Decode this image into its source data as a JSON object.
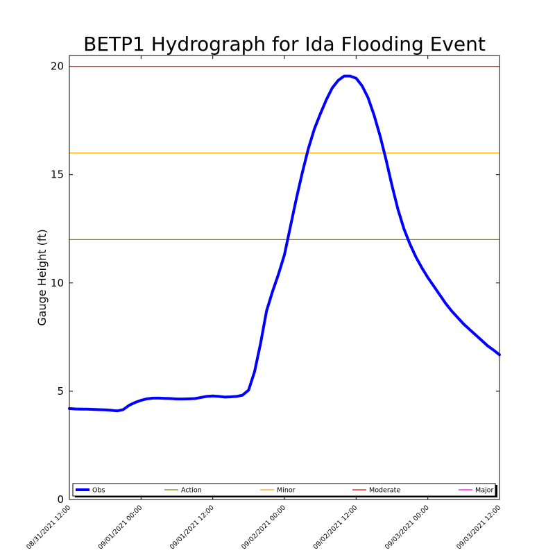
{
  "chart_data": {
    "type": "line",
    "title": "BETP1 Hydrograph for Ida Flooding Event",
    "xlabel": "",
    "ylabel": "Gauge Height (ft)",
    "ylim": [
      0,
      20.5
    ],
    "xlim": [
      "08/31/2021 12:00",
      "09/03/2021 12:00"
    ],
    "yticks": [
      0,
      5,
      10,
      15,
      20
    ],
    "xticks": [
      "08/31/2021 12:00",
      "09/01/2021 00:00",
      "09/01/2021 12:00",
      "09/02/2021 00:00",
      "09/02/2021 12:00",
      "09/03/2021 00:00",
      "09/03/2021 12:00"
    ],
    "legend": {
      "placement": "bottom",
      "entries": [
        "Obs",
        "Action",
        "Minor",
        "Moderate",
        "Major"
      ]
    },
    "grid": false,
    "series": [
      {
        "name": "Obs",
        "color": "#0000ff",
        "points": [
          [
            "08/31/2021 12:00",
            4.2
          ],
          [
            "08/31/2021 13:00",
            4.18
          ],
          [
            "08/31/2021 14:00",
            4.17
          ],
          [
            "08/31/2021 15:00",
            4.17
          ],
          [
            "08/31/2021 16:00",
            4.16
          ],
          [
            "08/31/2021 17:00",
            4.15
          ],
          [
            "08/31/2021 18:00",
            4.14
          ],
          [
            "08/31/2021 19:00",
            4.12
          ],
          [
            "08/31/2021 20:00",
            4.09
          ],
          [
            "08/31/2021 21:00",
            4.15
          ],
          [
            "08/31/2021 22:00",
            4.35
          ],
          [
            "08/31/2021 23:00",
            4.48
          ],
          [
            "09/01/2021 00:00",
            4.58
          ],
          [
            "09/01/2021 01:00",
            4.65
          ],
          [
            "09/01/2021 02:00",
            4.68
          ],
          [
            "09/01/2021 03:00",
            4.68
          ],
          [
            "09/01/2021 04:00",
            4.67
          ],
          [
            "09/01/2021 05:00",
            4.66
          ],
          [
            "09/01/2021 06:00",
            4.64
          ],
          [
            "09/01/2021 07:00",
            4.64
          ],
          [
            "09/01/2021 08:00",
            4.65
          ],
          [
            "09/01/2021 09:00",
            4.66
          ],
          [
            "09/01/2021 10:00",
            4.71
          ],
          [
            "09/01/2021 11:00",
            4.76
          ],
          [
            "09/01/2021 12:00",
            4.78
          ],
          [
            "09/01/2021 13:00",
            4.76
          ],
          [
            "09/01/2021 14:00",
            4.73
          ],
          [
            "09/01/2021 15:00",
            4.74
          ],
          [
            "09/01/2021 16:00",
            4.76
          ],
          [
            "09/01/2021 17:00",
            4.82
          ],
          [
            "09/01/2021 18:00",
            5.05
          ],
          [
            "09/01/2021 19:00",
            5.9
          ],
          [
            "09/01/2021 20:00",
            7.2
          ],
          [
            "09/01/2021 21:00",
            8.7
          ],
          [
            "09/01/2021 22:00",
            9.6
          ],
          [
            "09/01/2021 23:00",
            10.4
          ],
          [
            "09/02/2021 00:00",
            11.3
          ],
          [
            "09/02/2021 01:00",
            12.6
          ],
          [
            "09/02/2021 02:00",
            13.9
          ],
          [
            "09/02/2021 03:00",
            15.1
          ],
          [
            "09/02/2021 04:00",
            16.2
          ],
          [
            "09/02/2021 05:00",
            17.1
          ],
          [
            "09/02/2021 06:00",
            17.8
          ],
          [
            "09/02/2021 07:00",
            18.45
          ],
          [
            "09/02/2021 08:00",
            19.0
          ],
          [
            "09/02/2021 09:00",
            19.35
          ],
          [
            "09/02/2021 10:00",
            19.55
          ],
          [
            "09/02/2021 11:00",
            19.55
          ],
          [
            "09/02/2021 12:00",
            19.45
          ],
          [
            "09/02/2021 13:00",
            19.1
          ],
          [
            "09/02/2021 14:00",
            18.55
          ],
          [
            "09/02/2021 15:00",
            17.75
          ],
          [
            "09/02/2021 16:00",
            16.8
          ],
          [
            "09/02/2021 17:00",
            15.7
          ],
          [
            "09/02/2021 18:00",
            14.5
          ],
          [
            "09/02/2021 19:00",
            13.4
          ],
          [
            "09/02/2021 20:00",
            12.5
          ],
          [
            "09/02/2021 21:00",
            11.8
          ],
          [
            "09/02/2021 22:00",
            11.2
          ],
          [
            "09/02/2021 23:00",
            10.7
          ],
          [
            "09/03/2021 00:00",
            10.25
          ],
          [
            "09/03/2021 01:00",
            9.85
          ],
          [
            "09/03/2021 02:00",
            9.45
          ],
          [
            "09/03/2021 03:00",
            9.05
          ],
          [
            "09/03/2021 04:00",
            8.7
          ],
          [
            "09/03/2021 05:00",
            8.4
          ],
          [
            "09/03/2021 06:00",
            8.1
          ],
          [
            "09/03/2021 07:00",
            7.85
          ],
          [
            "09/03/2021 08:00",
            7.6
          ],
          [
            "09/03/2021 09:00",
            7.35
          ],
          [
            "09/03/2021 10:00",
            7.1
          ],
          [
            "09/03/2021 11:00",
            6.9
          ],
          [
            "09/03/2021 12:00",
            6.68
          ]
        ]
      },
      {
        "name": "Action",
        "color": "#808000",
        "value": 12
      },
      {
        "name": "Minor",
        "color": "#ffa500",
        "value": 16
      },
      {
        "name": "Moderate",
        "color": "#ff0000",
        "value": 20
      },
      {
        "name": "Major",
        "color": "#ff00ff"
      }
    ]
  }
}
